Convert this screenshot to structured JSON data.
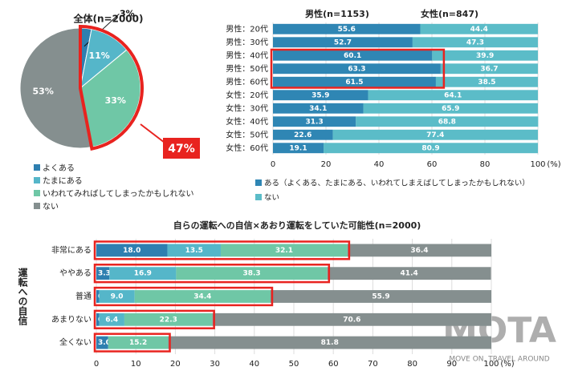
{
  "chart_data": [
    {
      "type": "pie",
      "title": "全体(n=2000)",
      "categories": [
        "よくある",
        "たまにある",
        "いわれてみればしてしまったかもしれない",
        "ない"
      ],
      "values": [
        3,
        11,
        33,
        53
      ],
      "value_labels": [
        "3%",
        "11%",
        "33%",
        "53%"
      ],
      "colors": [
        "#2e7fb0",
        "#55b6c9",
        "#6fc7a6",
        "#858f8f"
      ],
      "annotation": {
        "value": 47,
        "label": "47%"
      }
    },
    {
      "type": "hbar_stacked",
      "annotations": [
        "男性(n=1153)",
        "女性(n=847)"
      ],
      "categories": [
        "男性：20代",
        "男性：30代",
        "男性：40代",
        "男性：50代",
        "男性：60代",
        "女性：20代",
        "女性：30代",
        "女性：40代",
        "女性：50代",
        "女性：60代"
      ],
      "series": [
        {
          "name": "ある（よくある、たまにある、いわれてしまえばしてしまったかもしれない）",
          "color": "#2f86b4",
          "values": [
            55.6,
            52.7,
            60.1,
            63.3,
            61.5,
            35.9,
            34.1,
            31.3,
            22.6,
            19.1
          ]
        },
        {
          "name": "ない",
          "color": "#5bbcc8",
          "values": [
            44.4,
            47.3,
            39.9,
            36.7,
            38.5,
            64.1,
            65.9,
            68.8,
            77.4,
            80.9
          ]
        }
      ],
      "xlim": [
        0,
        100
      ],
      "xticks": [
        0,
        20,
        40,
        60,
        80,
        100
      ],
      "xlabel": "(%)"
    },
    {
      "type": "hbar_stacked",
      "title": "自らの運転への自信×あおり運転をしていた可能性(n=2000)",
      "ylabel": "運転への自信",
      "categories": [
        "非常にある",
        "ややある",
        "普通",
        "あまりない",
        "全くない"
      ],
      "series": [
        {
          "color": "#2e7fb0",
          "values": [
            18.0,
            3.3,
            0.7,
            0.7,
            3.0
          ],
          "value_labels": [
            "18.0",
            "3.3",
            "0.7",
            "0.7",
            "3.0"
          ]
        },
        {
          "color": "#55b6c9",
          "values": [
            13.5,
            16.9,
            9.0,
            6.4,
            null
          ],
          "value_labels": [
            "13.5",
            "16.9",
            "9.0",
            "6.4",
            null
          ]
        },
        {
          "color": "#6fc7a6",
          "values": [
            32.1,
            38.3,
            34.4,
            22.3,
            15.2
          ]
        },
        {
          "color": "#858f8f",
          "values": [
            36.4,
            41.4,
            55.9,
            70.6,
            81.8
          ]
        }
      ],
      "xlim": [
        0,
        100
      ],
      "xticks": [
        0,
        10,
        20,
        30,
        40,
        50,
        60,
        70,
        80,
        90,
        100
      ],
      "xlabel": "(%)"
    }
  ],
  "logo": {
    "text": "MOTA",
    "tagline": "MOVE ON, TRAVEL AROUND"
  }
}
